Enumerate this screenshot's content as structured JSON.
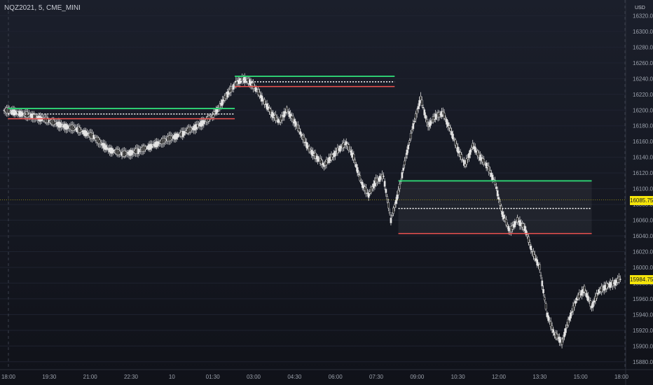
{
  "header": {
    "symbol": "NQZ2021, 5, CME_MINI",
    "currency": "USD",
    "scale_marker": "1x"
  },
  "price_tags": [
    {
      "label": "16085.75",
      "price": 16085.75,
      "color": "#f5e50b"
    },
    {
      "label": "15984.75",
      "price": 15984.75,
      "color": "#f5e50b"
    }
  ],
  "colors": {
    "background": "#131722",
    "candle": "#e0e0e0",
    "high_line": "#2ecc71",
    "low_line": "#ef5350",
    "mid_line": "#ffffff",
    "tag": "#f5e50b"
  },
  "chart_data": {
    "type": "candlestick",
    "ylim": [
      15870,
      16340
    ],
    "y_ticks": [
      15880,
      15900,
      15920,
      15940,
      15960,
      15980,
      16000,
      16020,
      16040,
      16060,
      16080,
      16100,
      16120,
      16140,
      16160,
      16180,
      16200,
      16220,
      16240,
      16260,
      16280,
      16300,
      16320
    ],
    "x_ticks": [
      "18:00",
      "19:30",
      "21:00",
      "22:30",
      "10",
      "01:30",
      "03:00",
      "04:30",
      "06:00",
      "07:30",
      "09:00",
      "10:30",
      "12:00",
      "13:30",
      "15:00",
      "18:00"
    ],
    "price_path": [
      [
        0,
        16200
      ],
      [
        4,
        16196
      ],
      [
        8,
        16192
      ],
      [
        12,
        16186
      ],
      [
        16,
        16180
      ],
      [
        20,
        16175
      ],
      [
        24,
        16166
      ],
      [
        28,
        16150
      ],
      [
        32,
        16144
      ],
      [
        36,
        16148
      ],
      [
        40,
        16155
      ],
      [
        44,
        16163
      ],
      [
        48,
        16170
      ],
      [
        52,
        16180
      ],
      [
        56,
        16192
      ],
      [
        58,
        16205
      ],
      [
        60,
        16220
      ],
      [
        62,
        16232
      ],
      [
        64,
        16240
      ],
      [
        66,
        16236
      ],
      [
        68,
        16225
      ],
      [
        70,
        16210
      ],
      [
        72,
        16195
      ],
      [
        74,
        16185
      ],
      [
        76,
        16200
      ],
      [
        78,
        16186
      ],
      [
        80,
        16168
      ],
      [
        82,
        16150
      ],
      [
        84,
        16140
      ],
      [
        86,
        16130
      ],
      [
        88,
        16140
      ],
      [
        90,
        16150
      ],
      [
        92,
        16158
      ],
      [
        94,
        16140
      ],
      [
        96,
        16108
      ],
      [
        98,
        16092
      ],
      [
        100,
        16110
      ],
      [
        102,
        16116
      ],
      [
        104,
        16060
      ],
      [
        106,
        16095
      ],
      [
        108,
        16140
      ],
      [
        110,
        16180
      ],
      [
        112,
        16215
      ],
      [
        114,
        16180
      ],
      [
        116,
        16192
      ],
      [
        118,
        16196
      ],
      [
        120,
        16175
      ],
      [
        122,
        16150
      ],
      [
        124,
        16130
      ],
      [
        126,
        16155
      ],
      [
        128,
        16140
      ],
      [
        130,
        16128
      ],
      [
        132,
        16108
      ],
      [
        134,
        16068
      ],
      [
        136,
        16046
      ],
      [
        138,
        16060
      ],
      [
        140,
        16050
      ],
      [
        142,
        16020
      ],
      [
        144,
        16000
      ],
      [
        146,
        15940
      ],
      [
        148,
        15915
      ],
      [
        150,
        15905
      ],
      [
        152,
        15935
      ],
      [
        154,
        15960
      ],
      [
        156,
        15972
      ],
      [
        158,
        15950
      ],
      [
        160,
        15970
      ],
      [
        162,
        15976
      ],
      [
        164,
        15980
      ],
      [
        166,
        15986
      ]
    ],
    "levels": [
      {
        "name": "high",
        "price": 16202,
        "from": 1,
        "to": 62,
        "color": "#2ecc71"
      },
      {
        "name": "mid",
        "price": 16195,
        "from": 1,
        "to": 62,
        "color": "#ffffff",
        "dotted": true
      },
      {
        "name": "low",
        "price": 16189,
        "from": 1,
        "to": 62,
        "color": "#ef5350"
      },
      {
        "name": "high",
        "price": 16243,
        "from": 62,
        "to": 105,
        "color": "#2ecc71"
      },
      {
        "name": "mid",
        "price": 16236,
        "from": 62,
        "to": 105,
        "color": "#ffffff",
        "dotted": true
      },
      {
        "name": "low",
        "price": 16230,
        "from": 62,
        "to": 105,
        "color": "#ef5350"
      },
      {
        "name": "high",
        "price": 16110,
        "from": 106,
        "to": 158,
        "color": "#2ecc71"
      },
      {
        "name": "mid",
        "price": 16075,
        "from": 106,
        "to": 158,
        "color": "#ffffff",
        "dotted": true
      },
      {
        "name": "low",
        "price": 16043,
        "from": 106,
        "to": 158,
        "color": "#ef5350"
      }
    ]
  }
}
